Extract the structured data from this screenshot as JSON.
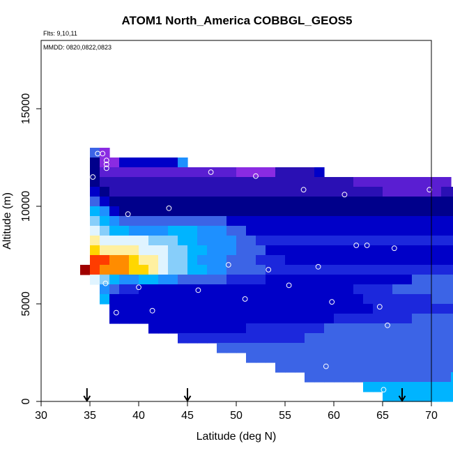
{
  "chart_data": {
    "type": "heatmap",
    "title": "ATOM1 North_America COBBGL_GEOS5",
    "notes": [
      "Flts: 9,10,11",
      "MMDD: 0820,0822,0823"
    ],
    "xlabel": "Latitude (deg N)",
    "ylabel": "Altitude (m)",
    "xlim": [
      30,
      70
    ],
    "ylim": [
      0,
      18500
    ],
    "xticks": [
      30,
      35,
      40,
      45,
      50,
      55,
      60,
      65,
      70
    ],
    "yticks": [
      0,
      5000,
      10000,
      15000
    ],
    "grid": false,
    "arrow_latitudes": [
      34.7,
      45,
      67
    ],
    "bin_width_deg": 1,
    "bin_height_m": 500,
    "palette": {
      "1": "#00008b",
      "2": "#0000c8",
      "3": "#1c28dc",
      "4": "#3c64e6",
      "5": "#1e90ff",
      "6": "#00b4ff",
      "7": "#87cefa",
      "8": "#e0f4ff",
      "9": "#fff0a0",
      "10": "#ffd700",
      "11": "#ff8c00",
      "12": "#ff3c00",
      "13": "#a00000",
      "14": "#8a2be2",
      "15": "#5a1ed2",
      "16": "#2a10b4"
    },
    "rows": [
      {
        "alt": 12750,
        "start": 35,
        "codes": [
          4,
          14
        ]
      },
      {
        "alt": 12250,
        "start": 35,
        "codes": [
          1,
          14,
          14,
          2,
          2,
          2,
          2,
          2,
          2,
          5
        ]
      },
      {
        "alt": 11750,
        "start": 35,
        "codes": [
          1,
          15,
          15,
          15,
          15,
          15,
          15,
          15,
          15,
          15,
          15,
          15,
          15,
          15,
          15,
          14,
          14,
          14,
          14,
          16,
          16,
          16,
          16,
          2
        ]
      },
      {
        "alt": 11250,
        "start": 35,
        "codes": [
          1,
          16,
          16,
          16,
          16,
          16,
          16,
          16,
          16,
          16,
          16,
          16,
          16,
          16,
          16,
          16,
          16,
          16,
          16,
          16,
          16,
          16,
          16,
          16,
          16,
          16,
          16,
          15,
          15,
          15,
          15,
          15,
          15,
          15,
          15,
          15,
          15
        ]
      },
      {
        "alt": 10750,
        "start": 35,
        "codes": [
          2,
          1,
          16,
          16,
          16,
          16,
          16,
          16,
          16,
          16,
          16,
          16,
          16,
          16,
          16,
          16,
          16,
          16,
          16,
          16,
          16,
          16,
          16,
          16,
          16,
          16,
          16,
          16,
          16,
          16,
          15,
          15,
          15,
          15,
          15,
          15,
          16,
          16,
          16,
          16,
          16,
          16,
          16,
          16,
          16,
          16,
          16,
          16,
          16,
          16,
          16,
          16,
          16,
          16
        ]
      },
      {
        "alt": 10250,
        "start": 35,
        "codes": [
          4,
          2,
          1,
          1,
          1,
          1,
          1,
          1,
          1,
          1,
          1,
          1,
          1,
          1,
          1,
          1,
          1,
          1,
          1,
          1,
          1,
          1,
          1,
          1,
          1,
          1,
          1,
          1,
          1,
          1,
          1,
          1,
          1,
          1,
          1,
          1,
          1,
          1,
          1,
          1,
          1,
          1,
          1,
          1,
          1,
          1,
          1,
          1,
          1,
          1,
          1,
          1,
          1,
          1
        ]
      },
      {
        "alt": 9750,
        "start": 35,
        "codes": [
          6,
          5,
          2,
          1,
          1,
          1,
          1,
          1,
          1,
          1,
          1,
          1,
          1,
          1,
          1,
          1,
          1,
          1,
          1,
          1,
          1,
          1,
          1,
          1,
          1,
          1,
          1,
          1,
          1,
          1,
          1,
          1,
          1,
          1,
          1,
          1,
          1,
          1,
          1,
          1,
          1,
          1,
          1,
          1,
          1,
          1,
          1,
          1,
          1,
          1,
          1,
          1,
          1,
          1
        ]
      },
      {
        "alt": 9250,
        "start": 35,
        "codes": [
          7,
          6,
          5,
          4,
          4,
          4,
          4,
          4,
          4,
          4,
          4,
          4,
          4,
          4,
          2,
          2,
          2,
          2,
          2,
          2,
          2,
          2,
          2,
          2,
          2,
          2,
          2,
          2,
          2,
          2,
          2,
          2,
          2,
          2,
          2,
          2,
          2,
          2,
          2,
          2,
          2,
          2,
          2,
          2,
          2,
          2,
          2,
          2,
          2,
          2,
          2,
          2,
          2,
          2
        ]
      },
      {
        "alt": 8750,
        "start": 35,
        "codes": [
          8,
          7,
          6,
          6,
          5,
          5,
          5,
          5,
          6,
          6,
          6,
          5,
          5,
          5,
          4,
          4,
          2,
          2,
          2,
          2,
          2,
          2,
          2,
          2,
          2,
          2,
          2,
          2,
          2,
          2,
          2,
          2,
          2,
          2,
          2,
          2,
          2,
          2,
          2,
          2,
          2,
          2,
          3,
          3,
          3,
          3,
          3,
          3,
          3,
          3,
          3,
          3,
          3,
          3
        ]
      },
      {
        "alt": 8250,
        "start": 35,
        "codes": [
          9,
          8,
          8,
          8,
          8,
          8,
          7,
          7,
          7,
          6,
          6,
          5,
          5,
          5,
          5,
          4,
          4,
          3,
          3,
          3,
          3,
          3,
          3,
          3,
          3,
          3,
          3,
          3,
          3,
          3,
          3,
          3,
          3,
          3,
          3,
          3,
          3,
          3,
          3,
          3,
          3,
          3,
          3,
          3,
          3,
          3,
          3,
          3,
          3,
          3,
          4,
          4,
          2,
          2
        ]
      },
      {
        "alt": 7750,
        "start": 35,
        "codes": [
          10,
          9,
          9,
          9,
          9,
          8,
          8,
          8,
          7,
          7,
          6,
          6,
          5,
          5,
          5,
          4,
          4,
          4,
          2,
          2,
          2,
          2,
          2,
          2,
          2,
          2,
          2,
          2,
          2,
          2,
          2,
          2,
          2,
          2,
          2,
          2,
          2,
          2,
          2,
          2,
          2,
          2,
          2,
          2,
          2,
          2,
          2,
          3,
          3,
          3,
          3,
          3,
          4,
          2
        ]
      },
      {
        "alt": 7250,
        "start": 35,
        "codes": [
          12,
          12,
          11,
          11,
          10,
          9,
          9,
          8,
          7,
          7,
          6,
          5,
          5,
          5,
          4,
          4,
          4,
          3,
          3,
          3,
          2,
          2,
          2,
          2,
          2,
          2,
          2,
          2,
          2,
          2,
          2,
          2,
          2,
          2,
          2,
          2,
          2,
          2,
          2,
          2,
          2,
          2,
          2,
          2,
          2,
          2,
          2,
          2,
          2,
          2,
          2,
          2,
          2,
          2
        ]
      },
      {
        "alt": 6750,
        "start": 34,
        "codes": [
          13,
          12,
          11,
          11,
          11,
          10,
          10,
          9,
          8,
          7,
          7,
          6,
          6,
          5,
          5,
          4,
          4,
          4,
          4,
          3,
          3,
          3,
          3,
          3,
          3,
          3,
          3,
          3,
          3,
          3,
          3,
          3,
          3,
          3,
          3,
          3,
          3,
          3,
          3,
          3,
          3,
          3,
          3,
          3,
          3,
          3,
          3,
          3,
          3,
          3,
          3,
          3,
          3,
          3
        ]
      },
      {
        "alt": 6250,
        "start": 35,
        "codes": [
          8,
          7,
          6,
          5,
          5,
          6,
          6,
          5,
          5,
          4,
          4,
          4,
          4,
          4,
          3,
          3,
          3,
          3,
          2,
          2,
          2,
          2,
          2,
          2,
          2,
          2,
          2,
          2,
          2,
          2,
          2,
          2,
          2,
          4,
          4,
          4,
          4,
          4,
          4,
          4,
          4,
          4,
          4,
          4,
          4,
          4,
          4,
          4,
          4,
          4,
          4,
          4,
          4,
          4
        ]
      },
      {
        "alt": 5750,
        "start": 36,
        "codes": [
          5,
          4,
          3,
          3,
          2,
          2,
          2,
          2,
          2,
          2,
          2,
          2,
          2,
          2,
          2,
          2,
          2,
          2,
          2,
          2,
          2,
          2,
          2,
          2,
          2,
          2,
          3,
          3,
          3,
          3,
          4,
          4,
          4,
          4,
          4,
          4,
          4,
          4,
          4,
          4,
          4,
          4,
          4,
          4,
          4,
          4,
          4,
          4,
          4,
          4,
          4,
          4
        ]
      },
      {
        "alt": 5250,
        "start": 36,
        "codes": [
          6,
          2,
          2,
          2,
          2,
          2,
          2,
          2,
          2,
          2,
          2,
          2,
          2,
          2,
          2,
          2,
          2,
          2,
          2,
          2,
          2,
          2,
          2,
          2,
          2,
          2,
          2,
          3,
          3,
          3,
          3,
          3,
          3,
          3,
          4,
          4,
          4,
          4,
          4,
          4,
          4,
          4,
          4,
          4,
          4,
          4,
          4,
          4,
          4,
          4,
          4,
          4,
          4
        ]
      },
      {
        "alt": 4750,
        "start": 37,
        "codes": [
          2,
          2,
          2,
          2,
          2,
          2,
          2,
          2,
          2,
          2,
          2,
          2,
          2,
          2,
          2,
          2,
          2,
          2,
          2,
          2,
          2,
          2,
          2,
          2,
          2,
          2,
          2,
          3,
          3,
          3,
          3,
          3,
          3,
          3,
          3,
          3,
          4,
          4,
          4,
          4,
          4,
          4,
          4,
          4,
          4,
          4,
          4,
          4,
          4,
          4,
          4,
          4
        ]
      },
      {
        "alt": 4250,
        "start": 37,
        "codes": [
          2,
          2,
          2,
          2,
          2,
          2,
          2,
          2,
          2,
          2,
          2,
          2,
          2,
          2,
          2,
          2,
          2,
          2,
          2,
          2,
          2,
          2,
          2,
          3,
          3,
          3,
          3,
          3,
          3,
          3,
          3,
          4,
          4,
          4,
          4,
          4,
          4,
          4,
          4,
          4,
          4,
          4,
          4,
          4,
          4,
          4,
          4,
          4,
          4,
          4,
          4
        ]
      },
      {
        "alt": 3750,
        "start": 41,
        "codes": [
          2,
          2,
          2,
          2,
          2,
          2,
          2,
          2,
          2,
          2,
          3,
          3,
          3,
          3,
          3,
          3,
          3,
          3,
          4,
          4,
          4,
          4,
          4,
          4,
          4,
          4,
          4,
          4,
          4,
          4,
          4,
          4,
          4,
          4,
          4,
          4,
          4,
          4,
          4,
          4,
          4,
          4,
          4,
          4,
          4,
          4,
          4
        ]
      },
      {
        "alt": 3250,
        "start": 44,
        "codes": [
          3,
          3,
          3,
          3,
          3,
          3,
          3,
          3,
          3,
          3,
          3,
          3,
          3,
          4,
          4,
          4,
          4,
          4,
          4,
          4,
          4,
          4,
          4,
          4,
          4,
          4,
          4,
          4,
          4,
          4,
          4,
          4,
          4,
          4,
          4,
          4,
          4,
          4,
          4,
          4,
          4,
          4,
          4,
          4,
          4,
          4
        ]
      },
      {
        "alt": 2750,
        "start": 48,
        "codes": [
          4,
          4,
          4,
          4,
          4,
          4,
          4,
          4,
          4,
          4,
          4,
          4,
          4,
          4,
          4,
          4,
          4,
          4,
          4,
          4,
          4,
          4,
          4,
          4,
          4,
          4,
          4,
          4,
          4,
          4,
          4,
          4,
          4,
          4,
          4,
          4,
          4,
          4,
          4,
          4,
          4,
          4,
          4,
          4,
          4,
          4
        ]
      },
      {
        "alt": 2250,
        "start": 51,
        "codes": [
          4,
          4,
          4,
          4,
          4,
          4,
          4,
          4,
          4,
          4,
          4,
          4,
          4,
          4,
          4,
          4,
          4,
          4,
          4,
          4,
          4,
          4,
          4,
          4,
          4,
          4,
          4,
          4,
          4,
          4,
          5,
          5,
          5,
          5,
          5,
          5,
          5,
          5,
          5,
          5,
          5,
          5
        ]
      },
      {
        "alt": 1750,
        "start": 54,
        "codes": [
          4,
          4,
          4,
          4,
          4,
          4,
          4,
          4,
          4,
          4,
          4,
          4,
          4,
          4,
          4,
          4,
          4,
          4,
          4,
          4,
          5,
          5,
          5,
          5,
          5,
          5,
          5,
          5,
          5,
          5,
          6,
          6,
          6,
          6,
          6,
          6,
          6,
          6,
          6,
          6,
          6,
          6
        ]
      },
      {
        "alt": 1250,
        "start": 57,
        "codes": [
          4,
          4,
          4,
          4,
          4,
          4,
          4,
          4,
          4,
          4,
          4,
          4,
          4,
          4,
          4,
          6,
          6,
          6,
          6,
          6,
          6,
          6,
          6,
          6,
          6,
          6,
          6,
          6,
          6,
          6,
          6,
          6,
          6,
          6,
          6,
          6,
          6,
          6,
          6
        ]
      },
      {
        "alt": 750,
        "start": 63,
        "codes": [
          6,
          6,
          6,
          6,
          6,
          6,
          6,
          6,
          6,
          6,
          6,
          6,
          6,
          6,
          6,
          6,
          6,
          6,
          6,
          6,
          6,
          6,
          6,
          6,
          6,
          6,
          6
        ]
      },
      {
        "alt": 250,
        "start": 65,
        "codes": [
          6,
          6,
          6,
          6,
          6,
          6,
          6,
          6,
          6,
          6,
          6,
          6,
          6,
          6,
          6,
          6,
          6,
          6
        ]
      }
    ],
    "points": [
      [
        35.8,
        12700
      ],
      [
        36.3,
        12700
      ],
      [
        36.7,
        12350
      ],
      [
        36.7,
        12150
      ],
      [
        36.7,
        11950
      ],
      [
        35.3,
        11500
      ],
      [
        47.4,
        11750
      ],
      [
        52.0,
        11550
      ],
      [
        56.9,
        10850
      ],
      [
        61.1,
        10600
      ],
      [
        69.8,
        10850
      ],
      [
        43.1,
        9900
      ],
      [
        38.9,
        9600
      ],
      [
        62.3,
        8000
      ],
      [
        63.4,
        8000
      ],
      [
        66.2,
        7850
      ],
      [
        34.7,
        7150
      ],
      [
        49.2,
        7000
      ],
      [
        53.3,
        6750
      ],
      [
        58.4,
        6900
      ],
      [
        36.6,
        6050
      ],
      [
        40.0,
        5850
      ],
      [
        46.1,
        5700
      ],
      [
        55.4,
        5950
      ],
      [
        50.9,
        5250
      ],
      [
        59.8,
        5100
      ],
      [
        64.7,
        4850
      ],
      [
        37.7,
        4550
      ],
      [
        41.4,
        4650
      ],
      [
        65.5,
        3900
      ],
      [
        59.2,
        1800
      ],
      [
        65.1,
        600
      ]
    ]
  }
}
